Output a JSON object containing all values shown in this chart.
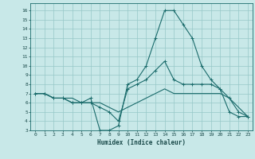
{
  "title": "",
  "xlabel": "Humidex (Indice chaleur)",
  "ylabel": "",
  "bg_color": "#c8e8e8",
  "grid_color": "#96c8c8",
  "line_color": "#1a6b6b",
  "xlim": [
    -0.5,
    23.5
  ],
  "ylim": [
    3,
    16.8
  ],
  "xticks": [
    0,
    1,
    2,
    3,
    4,
    5,
    6,
    7,
    8,
    9,
    10,
    11,
    12,
    13,
    14,
    15,
    16,
    17,
    18,
    19,
    20,
    21,
    22,
    23
  ],
  "yticks": [
    3,
    4,
    5,
    6,
    7,
    8,
    9,
    10,
    11,
    12,
    13,
    14,
    15,
    16
  ],
  "line1_x": [
    0,
    1,
    2,
    3,
    4,
    5,
    6,
    7,
    8,
    9,
    10,
    11,
    12,
    13,
    14,
    15,
    16,
    17,
    18,
    19,
    20,
    21,
    22,
    23
  ],
  "line1_y": [
    7,
    7,
    6.5,
    6.5,
    6,
    6,
    6.5,
    3,
    3,
    3.5,
    8,
    8.5,
    10,
    13,
    16,
    16,
    14.5,
    13,
    10,
    8.5,
    7.5,
    5,
    4.5,
    4.5
  ],
  "line2_x": [
    0,
    1,
    2,
    3,
    4,
    5,
    6,
    7,
    8,
    9,
    10,
    11,
    12,
    13,
    14,
    15,
    16,
    17,
    18,
    19,
    20,
    21,
    22,
    23
  ],
  "line2_y": [
    7,
    7,
    6.5,
    6.5,
    6,
    6,
    6,
    5.5,
    5,
    4,
    7.5,
    8,
    8.5,
    9.5,
    10.5,
    8.5,
    8,
    8,
    8,
    8,
    7.5,
    6.5,
    5,
    4.5
  ],
  "line3_x": [
    0,
    1,
    2,
    3,
    4,
    5,
    6,
    7,
    8,
    9,
    10,
    11,
    12,
    13,
    14,
    15,
    16,
    17,
    18,
    19,
    20,
    21,
    22,
    23
  ],
  "line3_y": [
    7,
    7,
    6.5,
    6.5,
    6.5,
    6,
    6,
    6,
    5.5,
    5,
    5.5,
    6,
    6.5,
    7,
    7.5,
    7,
    7,
    7,
    7,
    7,
    7,
    6.5,
    5.5,
    4.5
  ]
}
